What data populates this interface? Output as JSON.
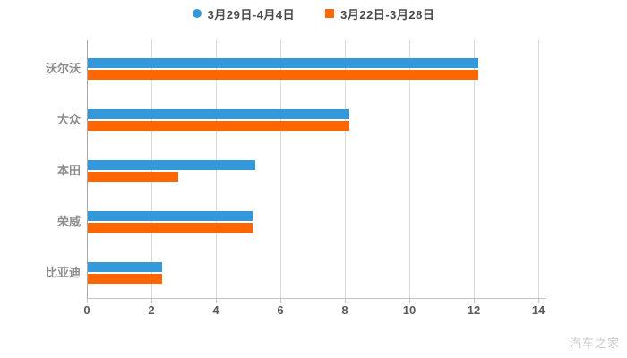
{
  "watermark": "汽车之家",
  "chart_data": {
    "type": "bar",
    "orientation": "horizontal",
    "title": "",
    "categories": [
      "沃尔沃",
      "大众",
      "本田",
      "荣威",
      "比亚迪"
    ],
    "series": [
      {
        "name": "3月29日-4月4日",
        "color": "#3499DB",
        "marker": "circle",
        "values": [
          12.1,
          8.1,
          5.2,
          5.1,
          2.3
        ]
      },
      {
        "name": "3月22日-3月28日",
        "color": "#FF6600",
        "marker": "square",
        "values": [
          12.1,
          8.1,
          2.8,
          5.1,
          2.3
        ]
      }
    ],
    "xlim": [
      0,
      14
    ],
    "xticks": [
      0,
      2,
      4,
      6,
      8,
      10,
      12,
      14
    ],
    "grid": true,
    "legend_position": "top",
    "colors": {
      "grid_line": "#DBDBDB",
      "axis_line": "#C2C2C2",
      "tick_label": "#595959",
      "category_label": "#8C8C8C",
      "legend_label": "#4A4A4A",
      "watermark": "#C9C9C9",
      "background": "#FFFFFF"
    }
  }
}
